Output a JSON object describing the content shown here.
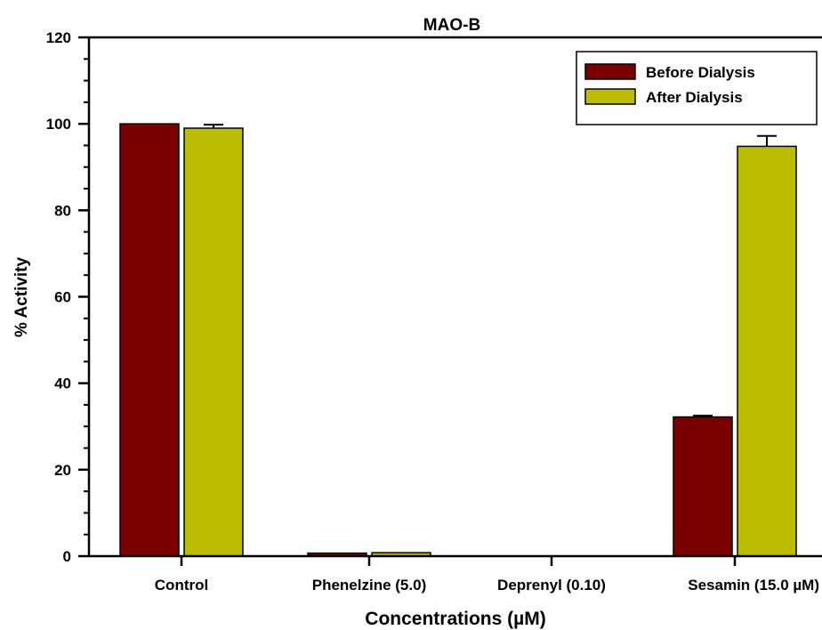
{
  "chart_data": {
    "type": "bar",
    "title": "MAO-B",
    "xlabel": "Concentrations (µM)",
    "ylabel": "% Activity",
    "ylim": [
      0,
      120
    ],
    "yticks": [
      0,
      20,
      40,
      60,
      80,
      100,
      120
    ],
    "categories": [
      "Control",
      "Phenelzine (5.0)",
      "Deprenyl (0.10)",
      "Sesamin (15.0 µM)"
    ],
    "series": [
      {
        "name": "Before Dialysis",
        "color": "#7a0000",
        "values": [
          100,
          0.7,
          0,
          32.2
        ],
        "errors": [
          0,
          0,
          0,
          0.3
        ]
      },
      {
        "name": "After Dialysis",
        "color": "#bcbc00",
        "values": [
          99,
          0.8,
          0,
          94.8
        ],
        "errors": [
          0.8,
          0,
          0,
          2.4
        ]
      }
    ],
    "legend_position": "top-right",
    "grid": false
  }
}
